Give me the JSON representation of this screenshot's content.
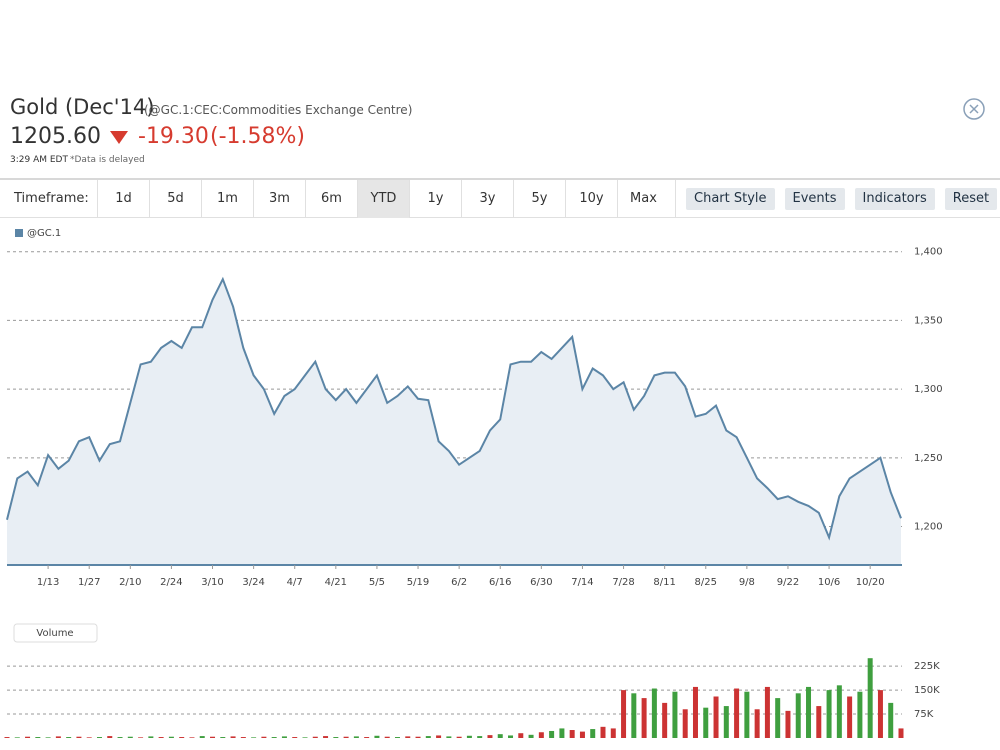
{
  "header": {
    "title": "Gold (Dec'14)",
    "subtitle": "(@GC.1:CEC:Commodities Exchange Centre)",
    "price": "1205.60",
    "change": "-19.30",
    "change_pct": "(-1.58%)",
    "time": "3:29 AM EDT",
    "note": "*Data is delayed"
  },
  "toolbar": {
    "label": "Timeframe:",
    "timeframes": [
      "1d",
      "5d",
      "1m",
      "3m",
      "6m",
      "YTD",
      "1y",
      "3y",
      "5y",
      "10y",
      "Max"
    ],
    "active": "YTD",
    "buttons": [
      "Chart Style",
      "Events",
      "Indicators",
      "Reset"
    ]
  },
  "chart_data": [
    {
      "type": "line",
      "legend": "@GC.1",
      "color": "#5b85a6",
      "fill": "#e8eef4",
      "grid": true,
      "categories": [
        null,
        null,
        null,
        null,
        "1/13",
        null,
        null,
        null,
        "1/27",
        null,
        null,
        null,
        "2/10",
        null,
        null,
        null,
        "2/24",
        null,
        null,
        null,
        "3/10",
        null,
        null,
        null,
        "3/24",
        null,
        null,
        null,
        "4/7",
        null,
        null,
        null,
        "4/21",
        null,
        null,
        null,
        "5/5",
        null,
        null,
        null,
        "5/19",
        null,
        null,
        null,
        "6/2",
        null,
        null,
        null,
        "6/16",
        null,
        null,
        null,
        "6/30",
        null,
        null,
        null,
        "7/14",
        null,
        null,
        null,
        "7/28",
        null,
        null,
        null,
        "8/11",
        null,
        null,
        null,
        "8/25",
        null,
        null,
        null,
        "9/8",
        null,
        null,
        null,
        "9/22",
        null,
        null,
        null,
        "10/6",
        null,
        null,
        null,
        "10/20",
        null,
        null,
        null
      ],
      "values": [
        1205,
        1235,
        1240,
        1230,
        1252,
        1242,
        1248,
        1262,
        1265,
        1248,
        1260,
        1262,
        1290,
        1318,
        1320,
        1330,
        1335,
        1330,
        1345,
        1345,
        1365,
        1380,
        1360,
        1330,
        1310,
        1300,
        1282,
        1295,
        1300,
        1310,
        1320,
        1300,
        1292,
        1300,
        1290,
        1300,
        1310,
        1290,
        1295,
        1302,
        1293,
        1292,
        1262,
        1255,
        1245,
        1250,
        1255,
        1270,
        1278,
        1318,
        1320,
        1320,
        1327,
        1322,
        1330,
        1338,
        1300,
        1315,
        1310,
        1300,
        1305,
        1285,
        1295,
        1310,
        1312,
        1312,
        1302,
        1280,
        1282,
        1288,
        1270,
        1265,
        1250,
        1235,
        1228,
        1220,
        1222,
        1218,
        1215,
        1210,
        1192,
        1222,
        1235,
        1240,
        1245,
        1250,
        1225,
        1206
      ],
      "ylim": [
        1172,
        1410
      ],
      "yticks": [
        {
          "value": 1200,
          "label": "1,200"
        },
        {
          "value": 1250,
          "label": "1,250"
        },
        {
          "value": 1300,
          "label": "1,300"
        },
        {
          "value": 1350,
          "label": "1,350"
        },
        {
          "value": 1400,
          "label": "1,400"
        }
      ]
    },
    {
      "type": "bar",
      "legend": "Volume",
      "grid": true,
      "values": [
        3000,
        2000,
        4000,
        3000,
        2000,
        5000,
        3000,
        4000,
        2000,
        3000,
        6000,
        3000,
        4000,
        2000,
        5000,
        3000,
        4000,
        3000,
        2000,
        6000,
        4000,
        3000,
        5000,
        3000,
        2000,
        4000,
        3000,
        5000,
        3000,
        2000,
        4000,
        6000,
        3000,
        4000,
        5000,
        3000,
        7000,
        4000,
        3000,
        5000,
        4000,
        6000,
        8000,
        5000,
        4000,
        7000,
        6000,
        9000,
        12000,
        8000,
        15000,
        10000,
        18000,
        22000,
        30000,
        25000,
        20000,
        28000,
        35000,
        30000,
        150000,
        140000,
        125000,
        155000,
        110000,
        145000,
        90000,
        160000,
        95000,
        130000,
        100000,
        155000,
        145000,
        90000,
        160000,
        125000,
        85000,
        140000,
        160000,
        100000,
        150000,
        165000,
        130000,
        145000,
        250000,
        150000,
        110000,
        30000
      ],
      "colors": [
        "#cc3333",
        "#3f9f3f",
        "#cc3333",
        "#3f9f3f",
        "#3f9f3f",
        "#cc3333",
        "#3f9f3f",
        "#cc3333",
        "#cc3333",
        "#3f9f3f",
        "#cc3333",
        "#3f9f3f",
        "#3f9f3f",
        "#cc3333",
        "#3f9f3f",
        "#cc3333",
        "#3f9f3f",
        "#cc3333",
        "#cc3333",
        "#3f9f3f",
        "#cc3333",
        "#3f9f3f",
        "#cc3333",
        "#cc3333",
        "#3f9f3f",
        "#cc3333",
        "#3f9f3f",
        "#3f9f3f",
        "#cc3333",
        "#3f9f3f",
        "#cc3333",
        "#cc3333",
        "#3f9f3f",
        "#cc3333",
        "#3f9f3f",
        "#cc3333",
        "#3f9f3f",
        "#cc3333",
        "#3f9f3f",
        "#cc3333",
        "#cc3333",
        "#3f9f3f",
        "#cc3333",
        "#3f9f3f",
        "#cc3333",
        "#3f9f3f",
        "#3f9f3f",
        "#cc3333",
        "#3f9f3f",
        "#3f9f3f",
        "#cc3333",
        "#3f9f3f",
        "#cc3333",
        "#3f9f3f",
        "#3f9f3f",
        "#cc3333",
        "#cc3333",
        "#3f9f3f",
        "#cc3333",
        "#cc3333",
        "#cc3333",
        "#3f9f3f",
        "#cc3333",
        "#3f9f3f",
        "#cc3333",
        "#3f9f3f",
        "#cc3333",
        "#cc3333",
        "#3f9f3f",
        "#cc3333",
        "#3f9f3f",
        "#cc3333",
        "#3f9f3f",
        "#cc3333",
        "#cc3333",
        "#3f9f3f",
        "#cc3333",
        "#3f9f3f",
        "#3f9f3f",
        "#cc3333",
        "#3f9f3f",
        "#3f9f3f",
        "#cc3333",
        "#3f9f3f",
        "#3f9f3f",
        "#cc3333",
        "#3f9f3f",
        "#cc3333"
      ],
      "ylim": [
        0,
        260000
      ],
      "yticks": [
        {
          "value": 75000,
          "label": "75K"
        },
        {
          "value": 150000,
          "label": "150K"
        },
        {
          "value": 225000,
          "label": "225K"
        }
      ]
    }
  ]
}
